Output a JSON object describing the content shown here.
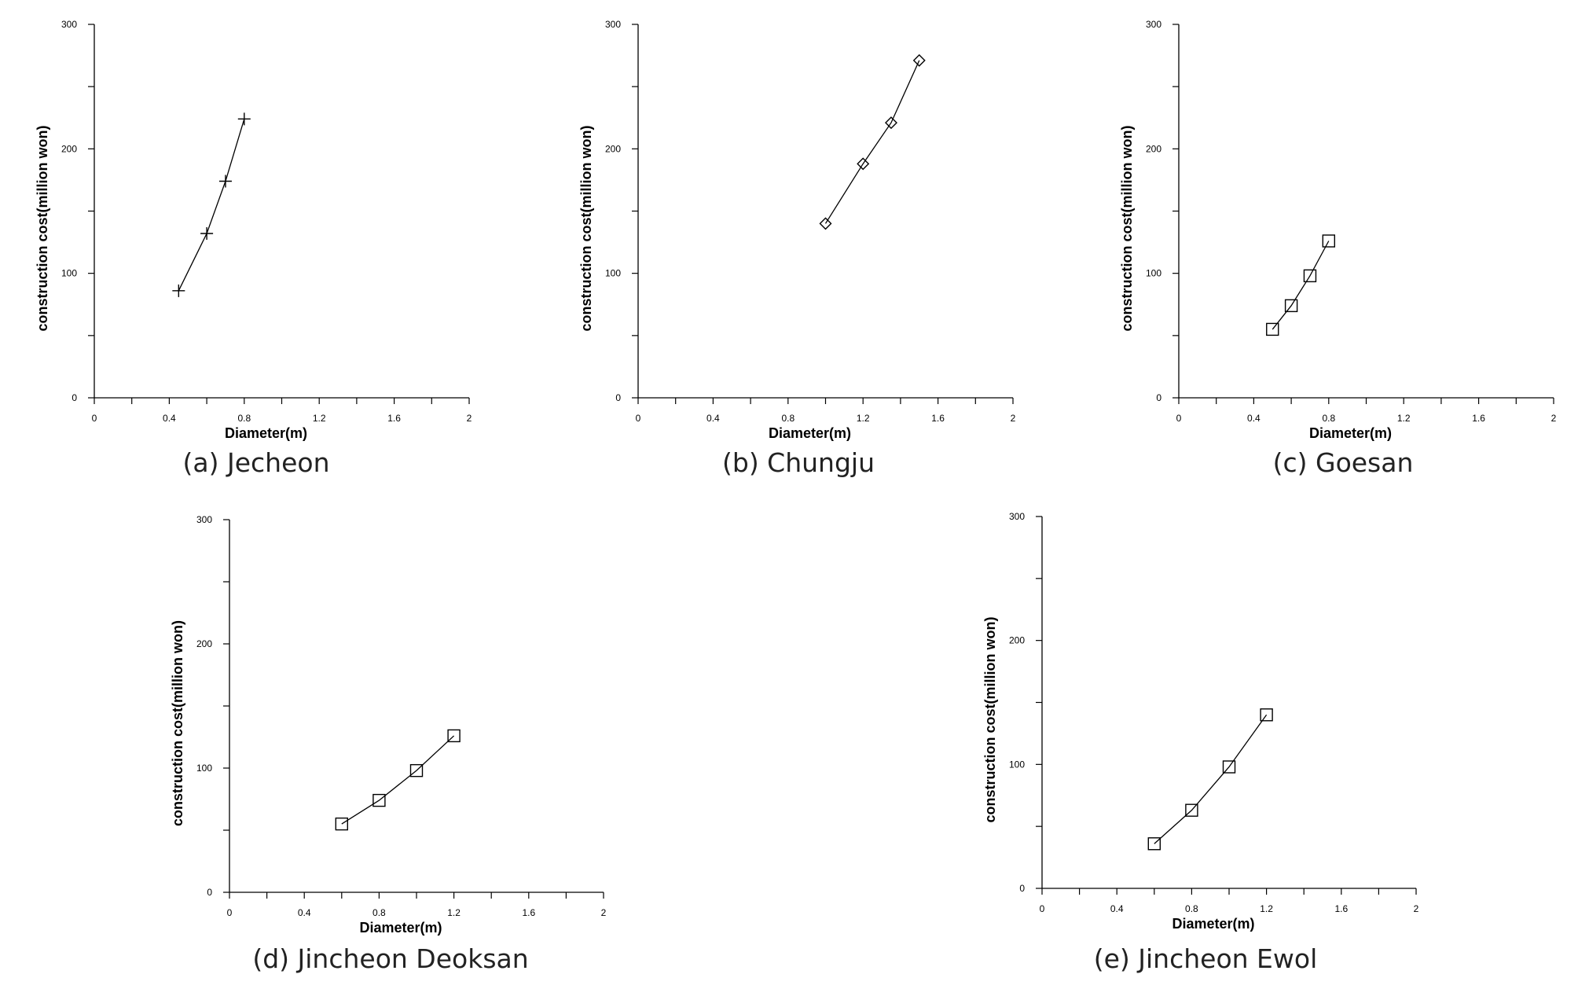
{
  "chart_data": [
    {
      "type": "line",
      "caption": "(a) Jecheon",
      "xlabel": "Diameter(m)",
      "ylabel": "construction cost(million won)",
      "xlim": [
        0,
        2
      ],
      "ylim": [
        0,
        300
      ],
      "xticks": [
        "0",
        "0.4",
        "0.8",
        "1.2",
        "1.6",
        "2"
      ],
      "yticks": [
        "0",
        "100",
        "200",
        "300"
      ],
      "marker": "plus",
      "series": [
        {
          "x": [
            0.45,
            0.6,
            0.7,
            0.8
          ],
          "values": [
            86,
            132,
            174,
            224
          ]
        }
      ]
    },
    {
      "type": "line",
      "caption": "(b) Chungju",
      "xlabel": "Diameter(m)",
      "ylabel": "construction cost(million won)",
      "xlim": [
        0,
        2
      ],
      "ylim": [
        0,
        300
      ],
      "xticks": [
        "0",
        "0.4",
        "0.8",
        "1.2",
        "1.6",
        "2"
      ],
      "yticks": [
        "0",
        "100",
        "200",
        "300"
      ],
      "marker": "diamond",
      "series": [
        {
          "x": [
            1.0,
            1.2,
            1.35,
            1.5
          ],
          "values": [
            140,
            188,
            221,
            271
          ]
        }
      ]
    },
    {
      "type": "line",
      "caption": "(c) Goesan",
      "xlabel": "Diameter(m)",
      "ylabel": "construction cost(million won)",
      "xlim": [
        0,
        2
      ],
      "ylim": [
        0,
        300
      ],
      "xticks": [
        "0",
        "0.4",
        "0.8",
        "1.2",
        "1.6",
        "2"
      ],
      "yticks": [
        "0",
        "100",
        "200",
        "300"
      ],
      "marker": "square",
      "series": [
        {
          "x": [
            0.5,
            0.6,
            0.7,
            0.8
          ],
          "values": [
            55,
            74,
            98,
            126
          ]
        }
      ]
    },
    {
      "type": "line",
      "caption": "(d) Jincheon Deoksan",
      "xlabel": "Diameter(m)",
      "ylabel": "construction cost(million won)",
      "xlim": [
        0,
        2
      ],
      "ylim": [
        0,
        300
      ],
      "xticks": [
        "0",
        "0.4",
        "0.8",
        "1.2",
        "1.6",
        "2"
      ],
      "yticks": [
        "0",
        "100",
        "200",
        "300"
      ],
      "marker": "square",
      "series": [
        {
          "x": [
            0.6,
            0.8,
            1.0,
            1.2
          ],
          "values": [
            55,
            74,
            98,
            126
          ]
        }
      ]
    },
    {
      "type": "line",
      "caption": "(e) Jincheon Ewol",
      "xlabel": "Diameter(m)",
      "ylabel": "construction cost(million won)",
      "xlim": [
        0,
        2
      ],
      "ylim": [
        0,
        300
      ],
      "xticks": [
        "0",
        "0.4",
        "0.8",
        "1.2",
        "1.6",
        "2"
      ],
      "yticks": [
        "0",
        "100",
        "200",
        "300"
      ],
      "marker": "square",
      "series": [
        {
          "x": [
            0.6,
            0.8,
            1.0,
            1.2
          ],
          "values": [
            36,
            63,
            98,
            140
          ]
        }
      ]
    }
  ]
}
